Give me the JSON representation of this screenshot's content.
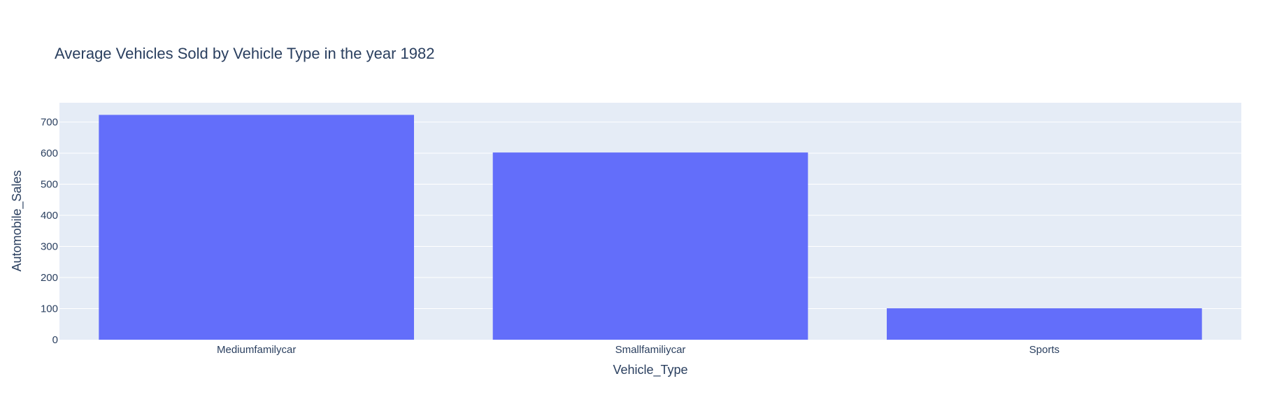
{
  "chart_data": {
    "type": "bar",
    "title": "Average Vehicles Sold by Vehicle Type in the year 1982",
    "xlabel": "Vehicle_Type",
    "ylabel": "Automobile_Sales",
    "categories": [
      "Mediumfamilycar",
      "Smallfamiliycar",
      "Sports"
    ],
    "values": [
      723,
      602,
      101
    ],
    "ylim": [
      0,
      762
    ],
    "yticks": [
      0,
      100,
      200,
      300,
      400,
      500,
      600,
      700
    ],
    "ytick_labels": [
      "0",
      "100",
      "200",
      "300",
      "400",
      "500",
      "600",
      "700"
    ],
    "grid": true,
    "legend": "none"
  },
  "colors": {
    "bar": "#636efa",
    "plot_background": "#e5ecf6",
    "gridline": "#ffffff",
    "text": "#2a3f5f"
  }
}
